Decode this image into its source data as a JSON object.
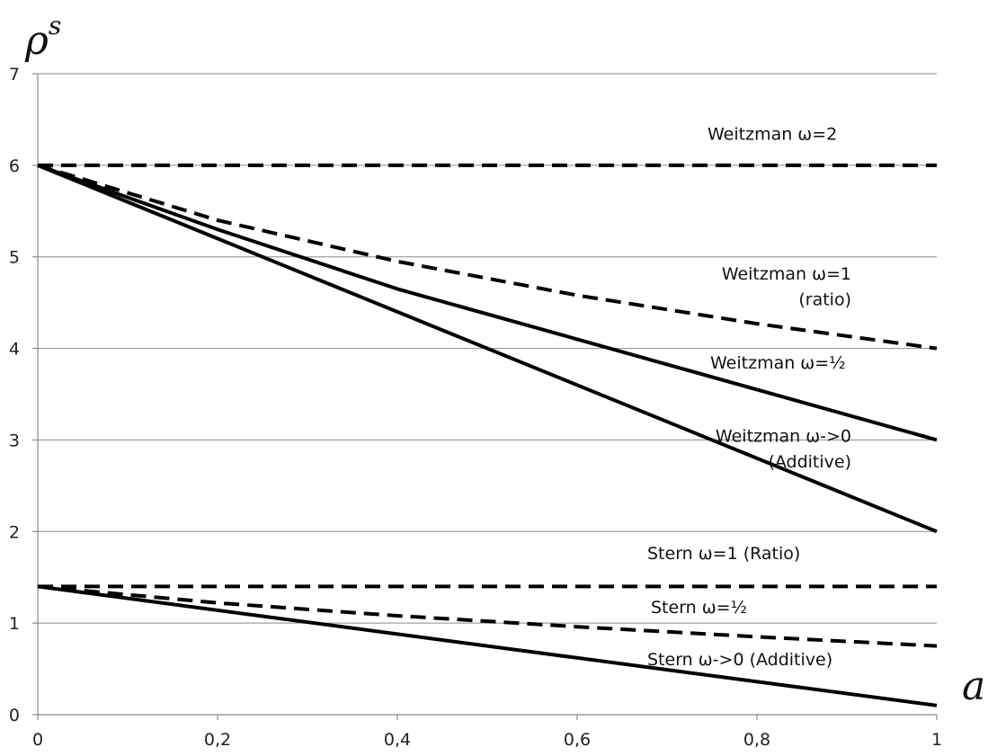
{
  "chart_data": {
    "type": "line",
    "ylabel": "ρ",
    "ylabel_superscript": "s",
    "xlabel": "a",
    "xlim": [
      0,
      1
    ],
    "ylim": [
      0,
      7
    ],
    "x_ticks": [
      0,
      0.2,
      0.4,
      0.6,
      0.8,
      1
    ],
    "x_tick_labels": [
      "0",
      "0,2",
      "0,4",
      "0,6",
      "0,8",
      "1"
    ],
    "y_ticks": [
      0,
      1,
      2,
      3,
      4,
      5,
      6,
      7
    ],
    "y_tick_labels": [
      "0",
      "1",
      "2",
      "3",
      "4",
      "5",
      "6",
      "7"
    ],
    "grid": "horizontal",
    "series": [
      {
        "id": "w2",
        "style": "dashed",
        "x": [
          0,
          1
        ],
        "y": [
          6,
          6
        ]
      },
      {
        "id": "w1",
        "style": "dashed",
        "x": [
          0,
          0.2,
          0.4,
          0.6,
          0.8,
          1
        ],
        "y": [
          6,
          5.4,
          4.95,
          4.58,
          4.27,
          4
        ]
      },
      {
        "id": "whalf",
        "style": "solid",
        "x": [
          0,
          0.2,
          0.4,
          0.6,
          0.8,
          1
        ],
        "y": [
          6,
          5.3,
          4.65,
          4.1,
          3.55,
          3
        ]
      },
      {
        "id": "w0",
        "style": "solid",
        "x": [
          0,
          1
        ],
        "y": [
          6,
          2
        ]
      },
      {
        "id": "s1",
        "style": "dashed",
        "x": [
          0,
          1
        ],
        "y": [
          1.4,
          1.4
        ]
      },
      {
        "id": "shalf",
        "style": "dashed",
        "x": [
          0,
          0.2,
          0.4,
          0.6,
          0.8,
          1
        ],
        "y": [
          1.4,
          1.22,
          1.08,
          0.96,
          0.85,
          0.75
        ]
      },
      {
        "id": "s0",
        "style": "solid",
        "x": [
          0,
          1
        ],
        "y": [
          1.4,
          0.1
        ]
      }
    ],
    "annotations": [
      {
        "id": "ann-w2",
        "lines": [
          "Weitzman ω=2"
        ],
        "anchor": "start",
        "x": 0.745,
        "y": 6.28
      },
      {
        "id": "ann-w1",
        "lines": [
          "Weitzman ω=1",
          "(ratio)"
        ],
        "anchor": "end",
        "x": 0.905,
        "y": 4.75,
        "line_dy": 0.28
      },
      {
        "id": "ann-whalf",
        "lines": [
          "Weitzman ω=½"
        ],
        "anchor": "start",
        "x": 0.748,
        "y": 3.78
      },
      {
        "id": "ann-w0",
        "lines": [
          "Weitzman ω->0",
          "(Additive)"
        ],
        "anchor": "end",
        "x": 0.905,
        "y": 2.98,
        "line_dy": 0.28
      },
      {
        "id": "ann-s1",
        "lines": [
          "Stern ω=1 (Ratio)"
        ],
        "anchor": "start",
        "x": 0.678,
        "y": 1.7
      },
      {
        "id": "ann-shalf",
        "lines": [
          "Stern ω=½"
        ],
        "anchor": "start",
        "x": 0.682,
        "y": 1.11
      },
      {
        "id": "ann-s0",
        "lines": [
          "Stern ω->0 (Additive)"
        ],
        "anchor": "start",
        "x": 0.678,
        "y": 0.54
      }
    ]
  }
}
